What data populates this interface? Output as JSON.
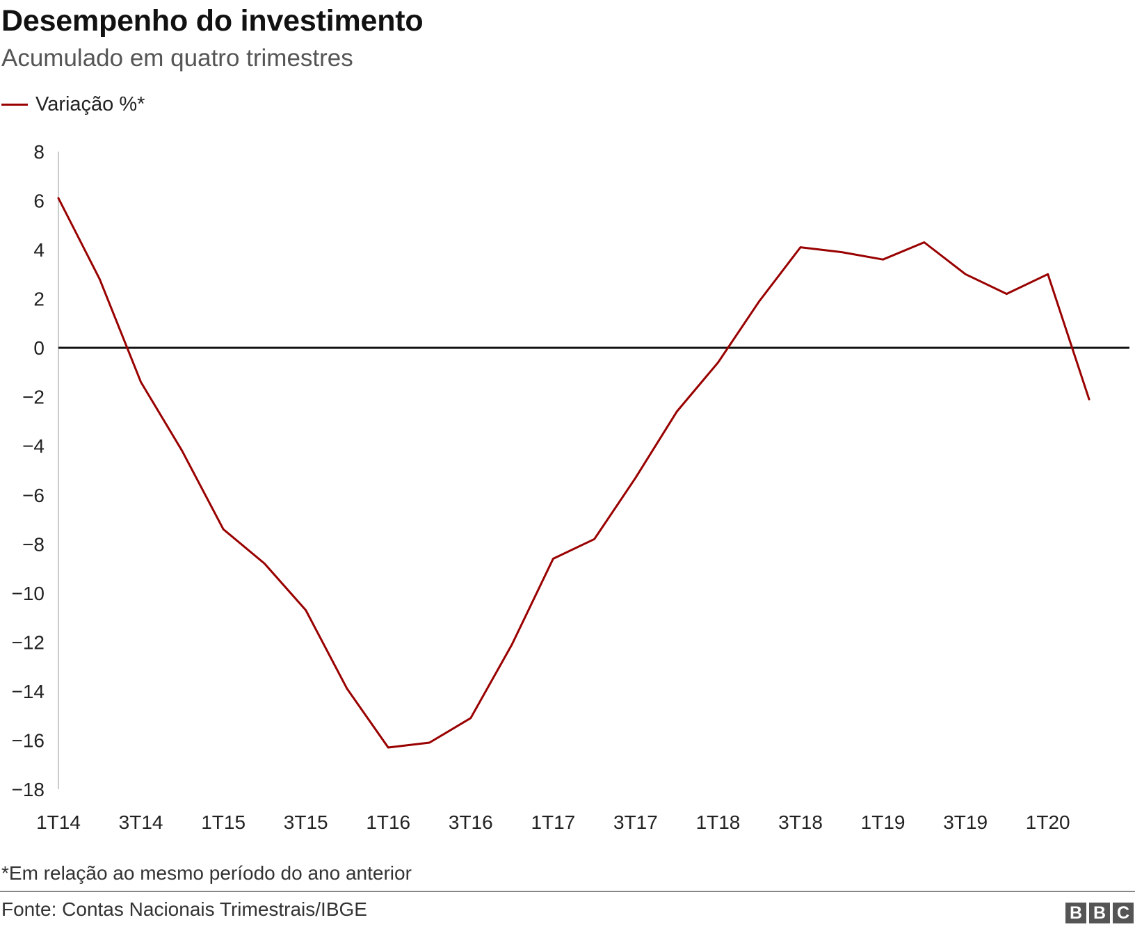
{
  "header": {
    "title": "Desempenho do investimento",
    "subtitle": "Acumulado em quatro trimestres"
  },
  "legend": {
    "label": "Variação %*"
  },
  "footer": {
    "footnote": "*Em relação ao mesmo período do ano anterior",
    "source": "Fonte: Contas Nacionais Trimestrais/IBGE",
    "logo_letters": [
      "B",
      "B",
      "C"
    ]
  },
  "colors": {
    "series": "#990000",
    "zero_line": "#111111",
    "axis": "#cccccc"
  },
  "chart_data": {
    "type": "line",
    "title": "Desempenho do investimento",
    "subtitle": "Acumulado em quatro trimestres",
    "x": [
      "1T14",
      "2T14",
      "3T14",
      "4T14",
      "1T15",
      "2T15",
      "3T15",
      "4T15",
      "1T16",
      "2T16",
      "3T16",
      "4T16",
      "1T17",
      "2T17",
      "3T17",
      "4T17",
      "1T18",
      "2T18",
      "3T18",
      "4T18",
      "1T19",
      "2T19",
      "3T19",
      "4T19",
      "1T20",
      "2T20"
    ],
    "x_tick_labels": [
      "1T14",
      "3T14",
      "1T15",
      "3T15",
      "1T16",
      "3T16",
      "1T17",
      "3T17",
      "1T18",
      "3T18",
      "1T19",
      "3T19",
      "1T20"
    ],
    "series": [
      {
        "name": "Variação %*",
        "values": [
          6.1,
          2.8,
          -1.4,
          -4.2,
          -7.4,
          -8.8,
          -10.7,
          -13.9,
          -16.3,
          -16.1,
          -15.1,
          -12.1,
          -8.6,
          -7.8,
          -5.3,
          -2.6,
          -0.6,
          1.9,
          4.1,
          3.9,
          3.6,
          4.3,
          3.0,
          2.2,
          3.0,
          -2.1
        ]
      }
    ],
    "yticks": [
      8,
      6,
      4,
      2,
      0,
      -2,
      -4,
      -6,
      -8,
      -10,
      -12,
      -14,
      -16,
      -18
    ],
    "ylim": [
      -18,
      8
    ],
    "grid": false,
    "legend_position": "top-left"
  }
}
